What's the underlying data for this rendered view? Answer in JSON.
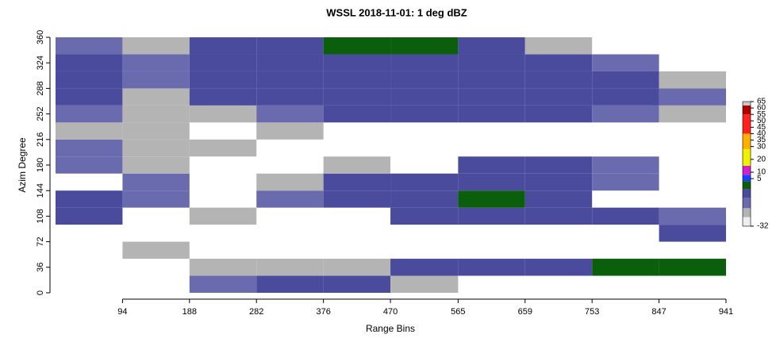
{
  "chart_data": {
    "type": "heatmap",
    "title": "WSSL 2018-11-01: 1 deg dBZ",
    "x_label": "Range Bins",
    "y_label": "Azim Degree",
    "xlim": [
      0,
      941
    ],
    "ylim": [
      0,
      360
    ],
    "xticks": [
      94,
      188,
      282,
      376,
      470,
      565,
      659,
      753,
      847,
      941
    ],
    "yticks": [
      0,
      36,
      72,
      108,
      144,
      180,
      216,
      252,
      288,
      324,
      360
    ],
    "x_edges": [
      0,
      94,
      188,
      282,
      376,
      470,
      565,
      659,
      753,
      847,
      941
    ],
    "y_edges": [
      0,
      24,
      48,
      72,
      96,
      120,
      144,
      168,
      192,
      216,
      240,
      264,
      288,
      312,
      336,
      360
    ],
    "z": [
      [
        null,
        null,
        -15,
        -10,
        -5,
        -20,
        null,
        null,
        null,
        null
      ],
      [
        null,
        null,
        -25,
        -25,
        -20,
        -5,
        -8,
        -5,
        -3,
        -3
      ],
      [
        null,
        -20,
        null,
        null,
        null,
        null,
        null,
        null,
        null,
        null
      ],
      [
        null,
        null,
        null,
        null,
        null,
        null,
        null,
        null,
        null,
        -10
      ],
      [
        -10,
        null,
        -25,
        null,
        null,
        -10,
        -5,
        -5,
        -10,
        -15
      ],
      [
        -10,
        -15,
        null,
        -15,
        -10,
        -5,
        0,
        -5,
        null,
        null
      ],
      [
        null,
        -15,
        null,
        -20,
        -5,
        -5,
        -10,
        -10,
        -15,
        null
      ],
      [
        -15,
        -20,
        null,
        null,
        -25,
        null,
        -10,
        -10,
        -15,
        null
      ],
      [
        -15,
        -20,
        -25,
        null,
        null,
        null,
        null,
        null,
        null,
        null
      ],
      [
        -20,
        -25,
        null,
        -20,
        null,
        null,
        null,
        null,
        null,
        null
      ],
      [
        -15,
        -20,
        -25,
        -15,
        -10,
        -10,
        -10,
        -10,
        -15,
        -20
      ],
      [
        -10,
        -20,
        -10,
        -5,
        -5,
        -5,
        -5,
        -5,
        -10,
        -15
      ],
      [
        -10,
        -15,
        -10,
        -5,
        -5,
        -5,
        -10,
        -10,
        -10,
        -20
      ],
      [
        -10,
        -15,
        -5,
        -5,
        -5,
        -5,
        -5,
        -10,
        -15,
        null
      ],
      [
        -15,
        -20,
        -10,
        -5,
        0,
        0,
        -5,
        -20,
        null,
        null
      ]
    ],
    "clim": [
      -32,
      65
    ],
    "colorscale": [
      {
        "value": -32,
        "color": "#eeeeee"
      },
      {
        "value": -25,
        "color": "#b4b4b4"
      },
      {
        "value": -18,
        "color": "#6a6aae"
      },
      {
        "value": -10,
        "color": "#4b4b9e"
      },
      {
        "value": -3,
        "color": "#0b5e0b"
      },
      {
        "value": 3,
        "color": "#1a40ff"
      },
      {
        "value": 8,
        "color": "#d020d0"
      },
      {
        "value": 15,
        "color": "#f0f000"
      },
      {
        "value": 28,
        "color": "#ffb000"
      },
      {
        "value": 40,
        "color": "#ff2020"
      },
      {
        "value": 55,
        "color": "#b00000"
      },
      {
        "value": 62,
        "color": "#c8c8c8"
      }
    ],
    "cticks": [
      -32,
      5,
      10,
      20,
      30,
      35,
      40,
      45,
      50,
      55,
      60,
      65
    ]
  }
}
